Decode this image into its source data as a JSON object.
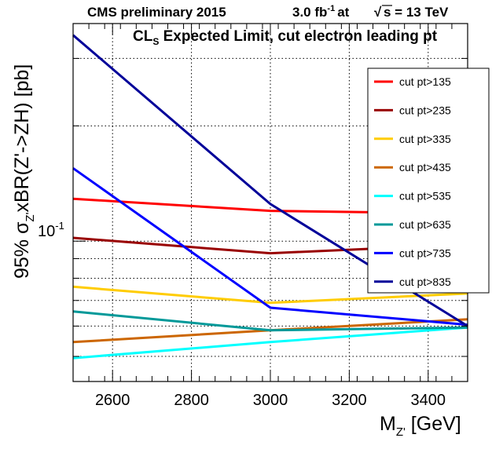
{
  "header": {
    "left": "CMS preliminary 2015",
    "lumi_value": "3.0 fb",
    "lumi_exp": "-1",
    "lumi_at": "at",
    "sqrt_symbol": "√",
    "energy": "s = 13 TeV"
  },
  "subtitle": {
    "main": "CL",
    "sub": "S",
    "rest": " Expected Limit, cut electron leading pt"
  },
  "chart_data": {
    "type": "line",
    "xlabel": {
      "main": "M",
      "sub": "Z'",
      "rest": " [GeV]"
    },
    "ylabel": {
      "pre": "95% σ",
      "sub": "Z'",
      "post": "xBR(Z'->ZH) [pb]"
    },
    "xlim": [
      2500,
      3500
    ],
    "ylim": [
      0.043,
      0.37
    ],
    "yscale": "log",
    "grid": true,
    "x_ticks": [
      2600,
      2800,
      3000,
      3200,
      3400
    ],
    "x_tick_labels": [
      "2600",
      "2800",
      "3000",
      "3200",
      "3400"
    ],
    "y_tick_label": {
      "base": "10",
      "exp": "-1",
      "value": 0.1
    },
    "legend_position": "right",
    "series": [
      {
        "name": "cut pt>135",
        "color": "#ff0000",
        "x": [
          2500,
          3000,
          3500
        ],
        "y": [
          0.129,
          0.12,
          0.118
        ]
      },
      {
        "name": "cut pt>235",
        "color": "#990000",
        "x": [
          2500,
          3000,
          3500
        ],
        "y": [
          0.102,
          0.093,
          0.098
        ]
      },
      {
        "name": "cut pt>335",
        "color": "#ffcc00",
        "x": [
          2500,
          3000,
          3500
        ],
        "y": [
          0.076,
          0.069,
          0.073
        ]
      },
      {
        "name": "cut pt>435",
        "color": "#cc6600",
        "x": [
          2500,
          3000,
          3500
        ],
        "y": [
          0.0545,
          0.0585,
          0.0625
        ]
      },
      {
        "name": "cut pt>535",
        "color": "#00ffff",
        "x": [
          2500,
          3000,
          3500
        ],
        "y": [
          0.0495,
          0.0545,
          0.0595
        ]
      },
      {
        "name": "cut pt>635",
        "color": "#009999",
        "x": [
          2500,
          3000,
          3500
        ],
        "y": [
          0.0655,
          0.0585,
          0.0595
        ]
      },
      {
        "name": "cut pt>735",
        "color": "#0000ff",
        "x": [
          2500,
          3000,
          3500
        ],
        "y": [
          0.155,
          0.067,
          0.0605
        ]
      },
      {
        "name": "cut pt>835",
        "color": "#000099",
        "x": [
          2500,
          3000,
          3500
        ],
        "y": [
          0.345,
          0.125,
          0.06
        ]
      }
    ]
  }
}
